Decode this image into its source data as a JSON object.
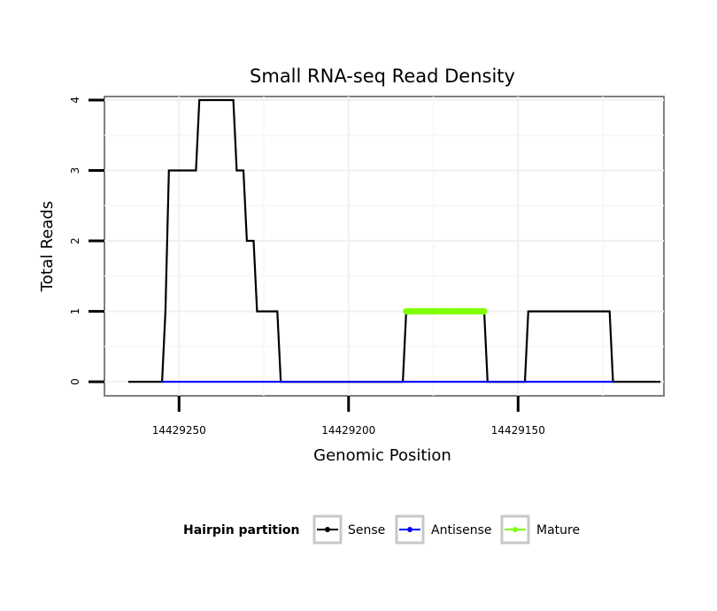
{
  "chart_data": {
    "type": "line",
    "title": "Small RNA-seq Read Density",
    "xlabel": "Genomic Position",
    "ylabel": "Total Reads",
    "xlim": [
      14429272,
      14429107
    ],
    "ylim": [
      -0.2,
      4.05
    ],
    "x_ticks": [
      14429250,
      14429200,
      14429150
    ],
    "x_tick_labels": [
      "14429250",
      "14429200",
      "14429150"
    ],
    "y_ticks": [
      0,
      1,
      2,
      3,
      4
    ],
    "y_tick_labels": [
      "0",
      "1",
      "2",
      "3",
      "4"
    ],
    "grid": true,
    "legend": {
      "title": "Hairpin partition",
      "position": "bottom",
      "entries": [
        "Sense",
        "Antisense",
        "Mature"
      ]
    },
    "series": [
      {
        "name": "Sense",
        "color": "#000000",
        "points": [
          [
            14429265,
            0
          ],
          [
            14429255,
            0
          ],
          [
            14429254,
            1
          ],
          [
            14429253,
            3
          ],
          [
            14429245,
            3
          ],
          [
            14429244,
            4
          ],
          [
            14429234,
            4
          ],
          [
            14429233,
            3
          ],
          [
            14429231,
            3
          ],
          [
            14429230,
            2
          ],
          [
            14429228,
            2
          ],
          [
            14429227,
            1
          ],
          [
            14429221,
            1
          ],
          [
            14429220,
            0
          ],
          [
            14429184,
            0
          ],
          [
            14429183,
            1
          ],
          [
            14429160,
            1
          ],
          [
            14429159,
            0
          ],
          [
            14429148,
            0
          ],
          [
            14429147,
            1
          ],
          [
            14429123,
            1
          ],
          [
            14429122,
            0
          ],
          [
            14429108,
            0
          ]
        ]
      },
      {
        "name": "Antisense",
        "color": "#0000ff",
        "points": [
          [
            14429255,
            0
          ],
          [
            14429122,
            0
          ]
        ]
      },
      {
        "name": "Mature",
        "color": "#7fff00",
        "points": [
          [
            14429183,
            1
          ],
          [
            14429160,
            1
          ]
        ]
      }
    ]
  }
}
